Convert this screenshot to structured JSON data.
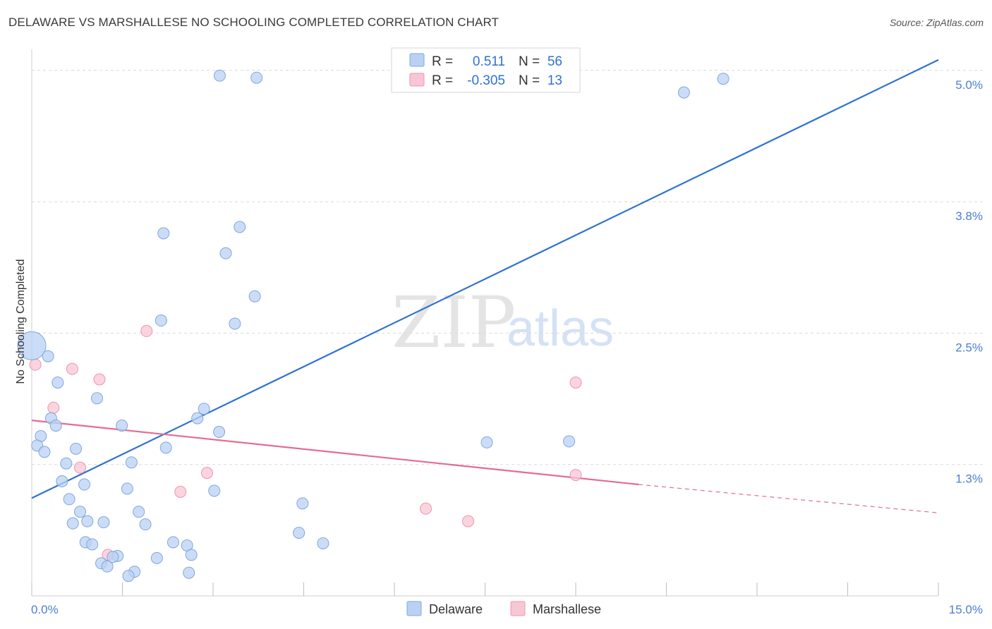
{
  "title": "DELAWARE VS MARSHALLESE NO SCHOOLING COMPLETED CORRELATION CHART",
  "source": "Source: ZipAtlas.com",
  "watermark": {
    "zip": "ZIP",
    "atlas": "atlas"
  },
  "colors": {
    "delaware_fill": "#b9d2f3",
    "delaware_stroke": "#7fa6e0",
    "delaware_line": "#2f72d0",
    "marshallese_fill": "#f8c6d4",
    "marshallese_stroke": "#ee94b0",
    "marshallese_line": "#e46b94",
    "tick_label": "#4a7fd0",
    "grid": "#d9d9d9"
  },
  "legend_top": {
    "rows": [
      {
        "r_label": "R =",
        "r_value": "0.511",
        "n_label": "N =",
        "n_value": "56"
      },
      {
        "r_label": "R =",
        "r_value": "-0.305",
        "n_label": "N =",
        "n_value": "13"
      }
    ]
  },
  "chart_data": {
    "type": "scatter",
    "xlabel": "",
    "ylabel": "No Schooling Completed",
    "xlim": [
      0,
      15
    ],
    "ylim": [
      0,
      5.2
    ],
    "x_tick_labels": [
      {
        "value": 0,
        "label": "0.0%"
      },
      {
        "value": 15,
        "label": "15.0%"
      }
    ],
    "y_tick_labels": [
      {
        "value": 1.25,
        "label": "1.3%"
      },
      {
        "value": 2.5,
        "label": "2.5%"
      },
      {
        "value": 3.75,
        "label": "3.8%"
      },
      {
        "value": 5.0,
        "label": "5.0%"
      }
    ],
    "grid": true,
    "legend_position": "bottom-center",
    "series": [
      {
        "name": "Delaware",
        "trend": {
          "x": [
            0,
            15
          ],
          "y": [
            0.93,
            5.1
          ]
        },
        "points": [
          {
            "x": 0.0,
            "y": 2.38,
            "big": true
          },
          {
            "x": 3.11,
            "y": 4.95
          },
          {
            "x": 3.72,
            "y": 4.93
          },
          {
            "x": 10.79,
            "y": 4.79
          },
          {
            "x": 11.44,
            "y": 4.92
          },
          {
            "x": 2.18,
            "y": 3.45
          },
          {
            "x": 3.44,
            "y": 3.51
          },
          {
            "x": 3.21,
            "y": 3.26
          },
          {
            "x": 3.69,
            "y": 2.85
          },
          {
            "x": 2.14,
            "y": 2.62
          },
          {
            "x": 3.36,
            "y": 2.59
          },
          {
            "x": 0.27,
            "y": 2.28
          },
          {
            "x": 0.43,
            "y": 2.03
          },
          {
            "x": 1.08,
            "y": 1.88
          },
          {
            "x": 0.32,
            "y": 1.69
          },
          {
            "x": 0.4,
            "y": 1.62
          },
          {
            "x": 1.49,
            "y": 1.62
          },
          {
            "x": 0.15,
            "y": 1.52
          },
          {
            "x": 0.09,
            "y": 1.43
          },
          {
            "x": 0.21,
            "y": 1.37
          },
          {
            "x": 0.73,
            "y": 1.4
          },
          {
            "x": 0.57,
            "y": 1.26
          },
          {
            "x": 2.85,
            "y": 1.78
          },
          {
            "x": 2.74,
            "y": 1.69
          },
          {
            "x": 3.1,
            "y": 1.56
          },
          {
            "x": 2.22,
            "y": 1.41
          },
          {
            "x": 1.65,
            "y": 1.27
          },
          {
            "x": 0.5,
            "y": 1.09
          },
          {
            "x": 0.87,
            "y": 1.06
          },
          {
            "x": 1.58,
            "y": 1.02
          },
          {
            "x": 3.02,
            "y": 1.0
          },
          {
            "x": 0.62,
            "y": 0.92
          },
          {
            "x": 0.8,
            "y": 0.8
          },
          {
            "x": 1.77,
            "y": 0.8
          },
          {
            "x": 0.92,
            "y": 0.71
          },
          {
            "x": 1.19,
            "y": 0.7
          },
          {
            "x": 1.88,
            "y": 0.68
          },
          {
            "x": 0.68,
            "y": 0.69
          },
          {
            "x": 4.48,
            "y": 0.88
          },
          {
            "x": 4.42,
            "y": 0.6
          },
          {
            "x": 4.82,
            "y": 0.5
          },
          {
            "x": 0.89,
            "y": 0.51
          },
          {
            "x": 1.0,
            "y": 0.49
          },
          {
            "x": 2.34,
            "y": 0.51
          },
          {
            "x": 2.57,
            "y": 0.48
          },
          {
            "x": 1.42,
            "y": 0.38
          },
          {
            "x": 2.64,
            "y": 0.39
          },
          {
            "x": 2.07,
            "y": 0.36
          },
          {
            "x": 1.15,
            "y": 0.31
          },
          {
            "x": 1.25,
            "y": 0.28
          },
          {
            "x": 1.7,
            "y": 0.23
          },
          {
            "x": 1.6,
            "y": 0.19
          },
          {
            "x": 2.6,
            "y": 0.22
          },
          {
            "x": 7.53,
            "y": 1.46
          },
          {
            "x": 8.89,
            "y": 1.47
          },
          {
            "x": 1.34,
            "y": 0.37
          }
        ]
      },
      {
        "name": "Marshallese",
        "trend": {
          "x": [
            0,
            10.04
          ],
          "y": [
            1.67,
            1.06
          ]
        },
        "trend_dashed": {
          "x": [
            10.04,
            15
          ],
          "y": [
            1.06,
            0.79
          ]
        },
        "points": [
          {
            "x": 0.06,
            "y": 2.2
          },
          {
            "x": 0.67,
            "y": 2.16
          },
          {
            "x": 1.12,
            "y": 2.06
          },
          {
            "x": 1.9,
            "y": 2.52
          },
          {
            "x": 0.36,
            "y": 1.79
          },
          {
            "x": 0.8,
            "y": 1.22
          },
          {
            "x": 2.9,
            "y": 1.17
          },
          {
            "x": 2.46,
            "y": 0.99
          },
          {
            "x": 1.26,
            "y": 0.39
          },
          {
            "x": 6.52,
            "y": 0.83
          },
          {
            "x": 7.22,
            "y": 0.71
          },
          {
            "x": 9.0,
            "y": 1.15
          },
          {
            "x": 9.0,
            "y": 2.03
          }
        ]
      }
    ]
  }
}
